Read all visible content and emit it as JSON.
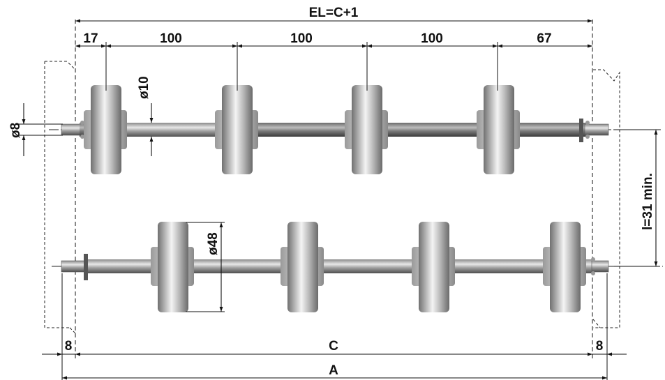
{
  "labels": {
    "el": "EL=C+1",
    "seg1": "17",
    "seg2": "100",
    "seg3": "100",
    "seg4": "100",
    "seg5": "67",
    "shaft_dia": "ø10",
    "end_dia": "ø8",
    "roller_dia": "ø48",
    "min_dist": "l=31 min.",
    "left_margin": "8",
    "c": "C",
    "right_margin": "8",
    "a": "A"
  },
  "colors": {
    "shaft_dark": "#6f6f6f",
    "shaft_light": "#e4e4e4",
    "roller_dark": "#7a7a7a",
    "roller_light": "#f2f2f2",
    "line": "#111111"
  }
}
